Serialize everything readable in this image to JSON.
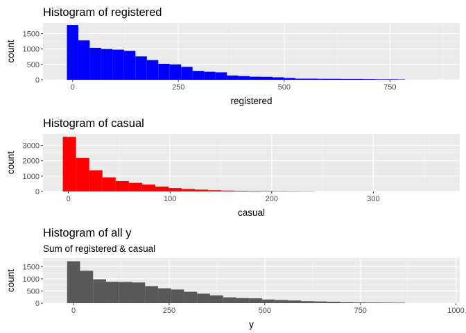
{
  "chart_data": [
    {
      "type": "bar",
      "title": "Histogram of registered",
      "subtitle": "",
      "xlabel": "registered",
      "ylabel": "count",
      "fill_color": "#0000ff",
      "xlim": [
        -70,
        915
      ],
      "ylim": [
        0,
        1850
      ],
      "x_ticks": [
        0,
        250,
        500,
        750
      ],
      "y_ticks": [
        0,
        500,
        1000,
        1500
      ],
      "grid": true,
      "legend": "none",
      "bins": [
        {
          "x0": -13.5,
          "x1": 13.5,
          "count": 1780
        },
        {
          "x0": 13.5,
          "x1": 40.5,
          "count": 1280
        },
        {
          "x0": 40.5,
          "x1": 67.5,
          "count": 1040
        },
        {
          "x0": 67.5,
          "x1": 94.5,
          "count": 1000
        },
        {
          "x0": 94.5,
          "x1": 121.5,
          "count": 980
        },
        {
          "x0": 121.5,
          "x1": 148.5,
          "count": 940
        },
        {
          "x0": 148.5,
          "x1": 175.5,
          "count": 760
        },
        {
          "x0": 175.5,
          "x1": 202.5,
          "count": 640
        },
        {
          "x0": 202.5,
          "x1": 229.5,
          "count": 520
        },
        {
          "x0": 229.5,
          "x1": 256.5,
          "count": 500
        },
        {
          "x0": 256.5,
          "x1": 283.5,
          "count": 420
        },
        {
          "x0": 283.5,
          "x1": 310.5,
          "count": 290
        },
        {
          "x0": 310.5,
          "x1": 337.5,
          "count": 260
        },
        {
          "x0": 337.5,
          "x1": 364.5,
          "count": 240
        },
        {
          "x0": 364.5,
          "x1": 391.5,
          "count": 140
        },
        {
          "x0": 391.5,
          "x1": 418.5,
          "count": 120
        },
        {
          "x0": 418.5,
          "x1": 445.5,
          "count": 100
        },
        {
          "x0": 445.5,
          "x1": 472.5,
          "count": 95
        },
        {
          "x0": 472.5,
          "x1": 499.5,
          "count": 80
        },
        {
          "x0": 499.5,
          "x1": 526.5,
          "count": 60
        },
        {
          "x0": 526.5,
          "x1": 553.5,
          "count": 35
        },
        {
          "x0": 553.5,
          "x1": 580.5,
          "count": 35
        },
        {
          "x0": 580.5,
          "x1": 607.5,
          "count": 30
        },
        {
          "x0": 607.5,
          "x1": 634.5,
          "count": 30
        },
        {
          "x0": 634.5,
          "x1": 661.5,
          "count": 25
        },
        {
          "x0": 661.5,
          "x1": 688.5,
          "count": 25
        },
        {
          "x0": 688.5,
          "x1": 715.5,
          "count": 20
        },
        {
          "x0": 715.5,
          "x1": 742.5,
          "count": 15
        },
        {
          "x0": 742.5,
          "x1": 769.5,
          "count": 15
        },
        {
          "x0": 769.5,
          "x1": 786,
          "count": 10
        }
      ]
    },
    {
      "type": "bar",
      "title": "Histogram of casual",
      "subtitle": "",
      "xlabel": "casual",
      "ylabel": "count",
      "fill_color": "#ff0000",
      "xlim": [
        -25,
        385
      ],
      "ylim": [
        0,
        3750
      ],
      "x_ticks": [
        0,
        100,
        200,
        300
      ],
      "y_ticks": [
        0,
        1000,
        2000,
        3000
      ],
      "grid": true,
      "legend": "none",
      "bins": [
        {
          "x0": -5.5,
          "x1": 7.5,
          "count": 3560
        },
        {
          "x0": 7.5,
          "x1": 20.5,
          "count": 2180
        },
        {
          "x0": 20.5,
          "x1": 33.5,
          "count": 1380
        },
        {
          "x0": 33.5,
          "x1": 46.5,
          "count": 920
        },
        {
          "x0": 46.5,
          "x1": 59.5,
          "count": 680
        },
        {
          "x0": 59.5,
          "x1": 72.5,
          "count": 560
        },
        {
          "x0": 72.5,
          "x1": 85.5,
          "count": 450
        },
        {
          "x0": 85.5,
          "x1": 98.5,
          "count": 320
        },
        {
          "x0": 98.5,
          "x1": 111.5,
          "count": 220
        },
        {
          "x0": 111.5,
          "x1": 124.5,
          "count": 160
        },
        {
          "x0": 124.5,
          "x1": 137.5,
          "count": 120
        },
        {
          "x0": 137.5,
          "x1": 150.5,
          "count": 80
        },
        {
          "x0": 150.5,
          "x1": 163.5,
          "count": 60
        },
        {
          "x0": 163.5,
          "x1": 176.5,
          "count": 45
        },
        {
          "x0": 176.5,
          "x1": 189.5,
          "count": 35
        },
        {
          "x0": 189.5,
          "x1": 202.5,
          "count": 30
        },
        {
          "x0": 202.5,
          "x1": 215.5,
          "count": 25
        },
        {
          "x0": 215.5,
          "x1": 228.5,
          "count": 20
        },
        {
          "x0": 228.5,
          "x1": 241.5,
          "count": 15
        }
      ]
    },
    {
      "type": "bar",
      "title": "Histogram of all y",
      "subtitle": "Sum of registered & casual",
      "xlabel": "y",
      "ylabel": "count",
      "fill_color": "#595959",
      "xlim": [
        -80,
        1010
      ],
      "ylim": [
        0,
        1850
      ],
      "x_ticks": [
        0,
        250,
        500,
        750,
        1000
      ],
      "y_ticks": [
        0,
        500,
        1000,
        1500
      ],
      "grid": true,
      "legend": "none",
      "bins": [
        {
          "x0": -17,
          "x1": 17,
          "count": 1720
        },
        {
          "x0": 17,
          "x1": 51,
          "count": 1330
        },
        {
          "x0": 51,
          "x1": 85,
          "count": 980
        },
        {
          "x0": 85,
          "x1": 119,
          "count": 880
        },
        {
          "x0": 119,
          "x1": 153,
          "count": 870
        },
        {
          "x0": 153,
          "x1": 187,
          "count": 850
        },
        {
          "x0": 187,
          "x1": 221,
          "count": 700
        },
        {
          "x0": 221,
          "x1": 255,
          "count": 610
        },
        {
          "x0": 255,
          "x1": 289,
          "count": 560
        },
        {
          "x0": 289,
          "x1": 323,
          "count": 470
        },
        {
          "x0": 323,
          "x1": 357,
          "count": 390
        },
        {
          "x0": 357,
          "x1": 391,
          "count": 320
        },
        {
          "x0": 391,
          "x1": 425,
          "count": 240
        },
        {
          "x0": 425,
          "x1": 459,
          "count": 210
        },
        {
          "x0": 459,
          "x1": 493,
          "count": 200
        },
        {
          "x0": 493,
          "x1": 527,
          "count": 150
        },
        {
          "x0": 527,
          "x1": 561,
          "count": 130
        },
        {
          "x0": 561,
          "x1": 595,
          "count": 110
        },
        {
          "x0": 595,
          "x1": 629,
          "count": 80
        },
        {
          "x0": 629,
          "x1": 663,
          "count": 70
        },
        {
          "x0": 663,
          "x1": 697,
          "count": 60
        },
        {
          "x0": 697,
          "x1": 731,
          "count": 45
        },
        {
          "x0": 731,
          "x1": 765,
          "count": 35
        },
        {
          "x0": 765,
          "x1": 799,
          "count": 30
        },
        {
          "x0": 799,
          "x1": 833,
          "count": 25
        },
        {
          "x0": 833,
          "x1": 867,
          "count": 20
        }
      ]
    }
  ]
}
